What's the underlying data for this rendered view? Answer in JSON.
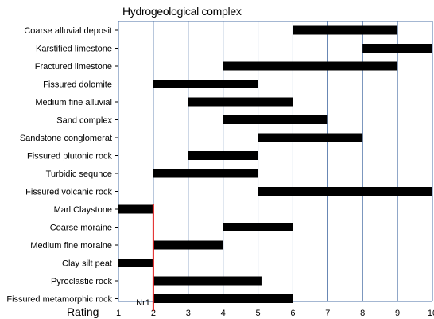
{
  "chart_data": {
    "type": "bar",
    "title": "Hydrogeological complex",
    "xlabel": "Rating",
    "xlim": [
      1,
      10
    ],
    "xticks": [
      1,
      2,
      3,
      4,
      5,
      6,
      7,
      8,
      9,
      10
    ],
    "grid": "vertical",
    "threshold": {
      "label": "Nr1",
      "value": 2,
      "color": "#e02020"
    },
    "bar_color": "#000000",
    "grid_color": "#4a6fa5",
    "categories": [
      "Coarse alluvial deposit",
      "Karstified limestone",
      "Fractured limestone",
      "Fissured dolomite",
      "Medium fine alluvial",
      "Sand complex",
      "Sandstone conglomerat",
      "Fissured plutonic rock",
      "Turbidic sequnce",
      "Fissured volcanic rock",
      "Marl Claystone",
      "Coarse moraine",
      "Medium fine moraine",
      "Clay silt peat",
      "Pyroclastic rock",
      "Fissured metamorphic rock"
    ],
    "ranges": [
      [
        6,
        9
      ],
      [
        8,
        10
      ],
      [
        4,
        9
      ],
      [
        2,
        5
      ],
      [
        3,
        6
      ],
      [
        4,
        7
      ],
      [
        5,
        8
      ],
      [
        3,
        5
      ],
      [
        2,
        5
      ],
      [
        5,
        10
      ],
      [
        1,
        2
      ],
      [
        4,
        6
      ],
      [
        2,
        4
      ],
      [
        1,
        2
      ],
      [
        2,
        5.1
      ],
      [
        2,
        6
      ]
    ]
  }
}
